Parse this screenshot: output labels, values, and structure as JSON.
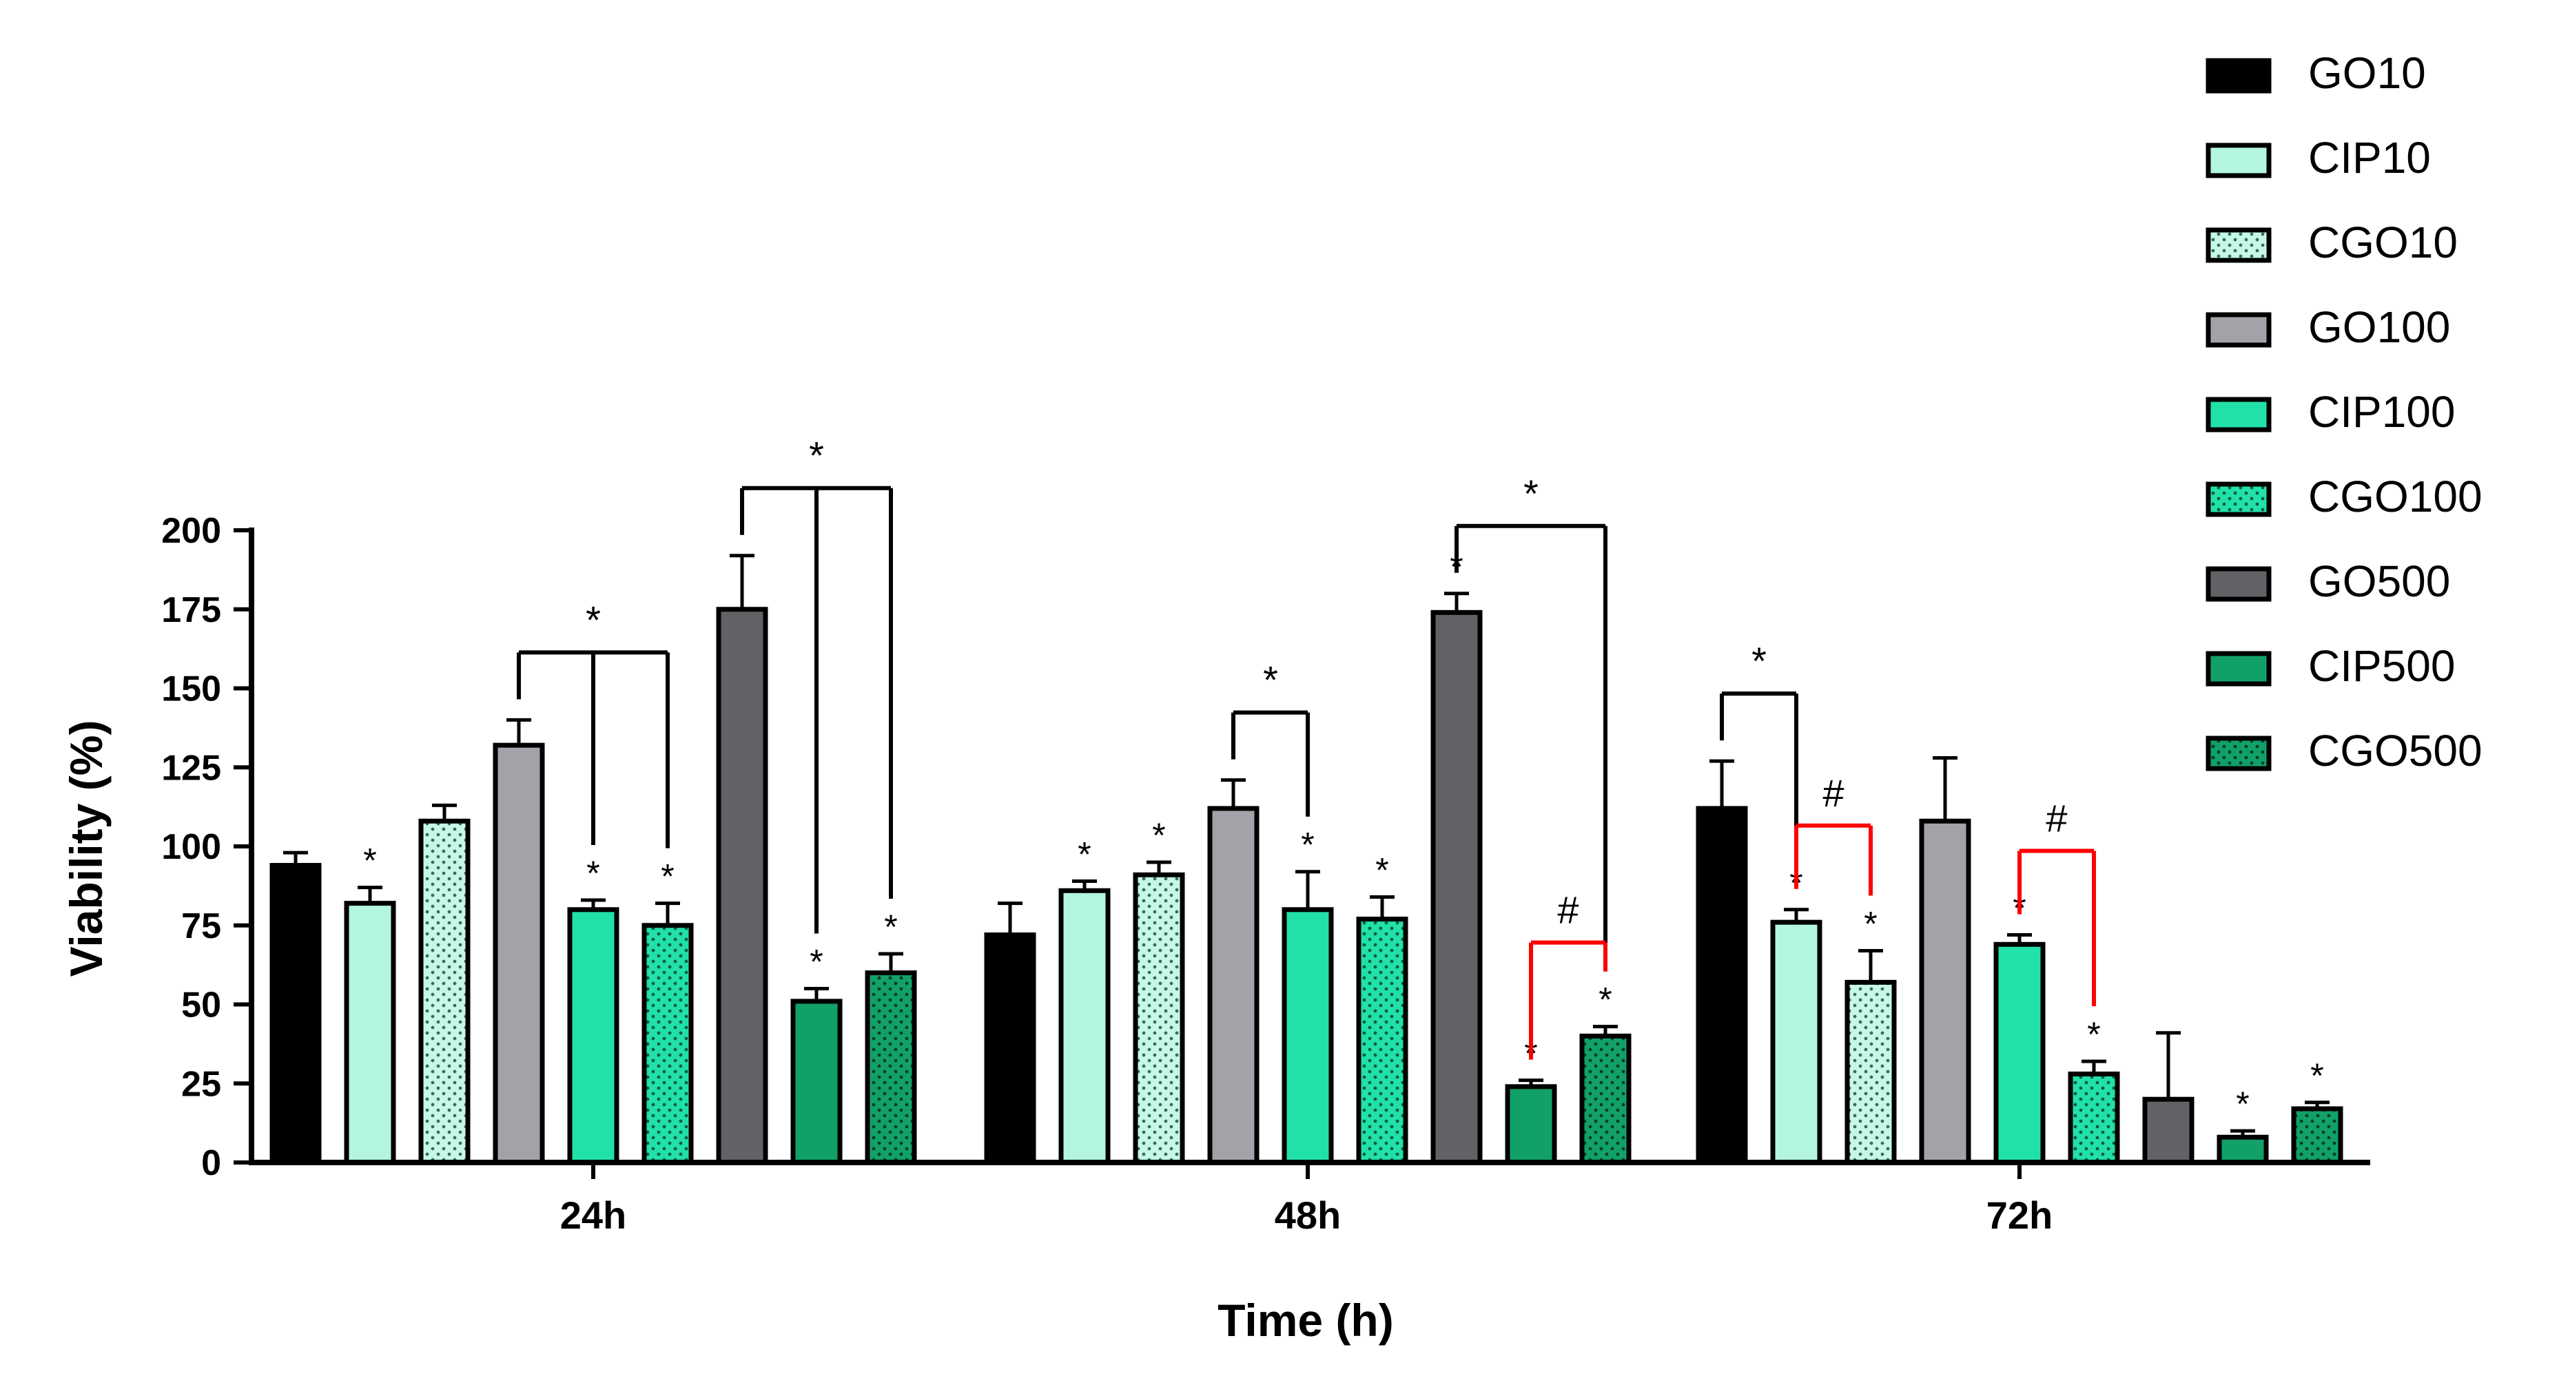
{
  "chart_data": {
    "type": "bar",
    "title": "",
    "xlabel": "Time (h)",
    "ylabel": "Viability (%)",
    "ylim": [
      0,
      200
    ],
    "yticks": [
      0,
      25,
      50,
      75,
      100,
      125,
      150,
      175,
      200
    ],
    "categories": [
      "24h",
      "48h",
      "72h"
    ],
    "series": [
      {
        "name": "GO10",
        "values": [
          94,
          72,
          112
        ],
        "errors": [
          4,
          10,
          15
        ],
        "fill": "#000000",
        "pattern": "solid"
      },
      {
        "name": "CIP10",
        "values": [
          82,
          86,
          76
        ],
        "errors": [
          5,
          3,
          4
        ],
        "fill": "#b3f5e0",
        "pattern": "solid"
      },
      {
        "name": "CGO10",
        "values": [
          108,
          91,
          57
        ],
        "errors": [
          5,
          4,
          10
        ],
        "fill": "#c6f8e8",
        "pattern": "dots"
      },
      {
        "name": "GO100",
        "values": [
          132,
          112,
          108
        ],
        "errors": [
          8,
          9,
          20
        ],
        "fill": "#a2a2a8",
        "pattern": "solid"
      },
      {
        "name": "CIP100",
        "values": [
          80,
          80,
          69
        ],
        "errors": [
          3,
          12,
          3
        ],
        "fill": "#21e1a8",
        "pattern": "solid"
      },
      {
        "name": "CGO100",
        "values": [
          75,
          77,
          28
        ],
        "errors": [
          7,
          7,
          4
        ],
        "fill": "#21e1a8",
        "pattern": "dots"
      },
      {
        "name": "GO500",
        "values": [
          175,
          174,
          20
        ],
        "errors": [
          17,
          6,
          21
        ],
        "fill": "#626266",
        "pattern": "solid"
      },
      {
        "name": "CIP500",
        "values": [
          51,
          24,
          8
        ],
        "errors": [
          4,
          2,
          2
        ],
        "fill": "#12a069",
        "pattern": "solid"
      },
      {
        "name": "CGO500",
        "values": [
          60,
          40,
          17
        ],
        "errors": [
          6,
          3,
          2
        ],
        "fill": "#12a069",
        "pattern": "dots"
      }
    ],
    "significance_stars": [
      {
        "category": "24h",
        "series": [
          "CIP10",
          "CIP100",
          "CGO100",
          "CIP500",
          "CGO500"
        ]
      },
      {
        "category": "48h",
        "series": [
          "CIP10",
          "CGO10",
          "CIP100",
          "CGO100",
          "GO500",
          "CIP500",
          "CGO500"
        ]
      },
      {
        "category": "72h",
        "series": [
          "CIP10",
          "CGO10",
          "CIP100",
          "CGO100",
          "CIP500",
          "CGO500"
        ]
      }
    ],
    "brackets": [
      {
        "category": "24h",
        "from": "GO100",
        "to": [
          "CIP100",
          "CGO100"
        ],
        "label": "*",
        "color": "#000000"
      },
      {
        "category": "24h",
        "from": "GO500",
        "to": [
          "CIP500",
          "CGO500"
        ],
        "label": "*",
        "color": "#000000"
      },
      {
        "category": "48h",
        "from": "GO100",
        "to": [
          "CIP100"
        ],
        "label": "*",
        "color": "#000000"
      },
      {
        "category": "48h",
        "from": "GO500",
        "to": [
          "CGO500"
        ],
        "label": "*",
        "color": "#000000"
      },
      {
        "category": "48h",
        "from": "CIP500",
        "to": [
          "CGO500"
        ],
        "label": "#",
        "color": "#ff0000"
      },
      {
        "category": "72h",
        "from": "GO10",
        "to": [
          "CIP10"
        ],
        "label": "*",
        "color": "#000000"
      },
      {
        "category": "72h",
        "from": "CIP10",
        "to": [
          "CGO10"
        ],
        "label": "#",
        "color": "#ff0000"
      },
      {
        "category": "72h",
        "from": "CIP100",
        "to": [
          "CGO100"
        ],
        "label": "#",
        "color": "#ff0000"
      }
    ],
    "legend_position": "top-right"
  }
}
